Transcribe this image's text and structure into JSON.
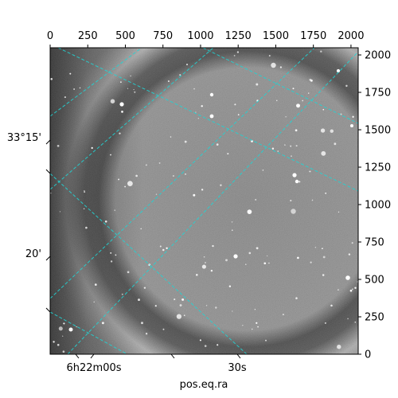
{
  "figure": {
    "x_axis_label": "pos.eq.ra",
    "pixel_axes": {
      "top_ticks": [
        "0",
        "250",
        "500",
        "750",
        "1000",
        "1250",
        "1500",
        "1750",
        "2000"
      ],
      "right_ticks": [
        "0",
        "250",
        "500",
        "750",
        "1000",
        "1250",
        "1500",
        "1750",
        "2000"
      ],
      "x_range": [
        0,
        2048
      ],
      "y_range": [
        0,
        2048
      ]
    },
    "world_axes": {
      "ra_ticks": [
        "6h22m00s",
        "30s"
      ],
      "dec_ticks": [
        "33°15'",
        "20'"
      ]
    },
    "colors": {
      "grid": "#22d3d3",
      "frame": "#000000",
      "background": "#ffffff"
    },
    "image": {
      "colormap": "gray",
      "content": "star field with bright ring"
    }
  }
}
